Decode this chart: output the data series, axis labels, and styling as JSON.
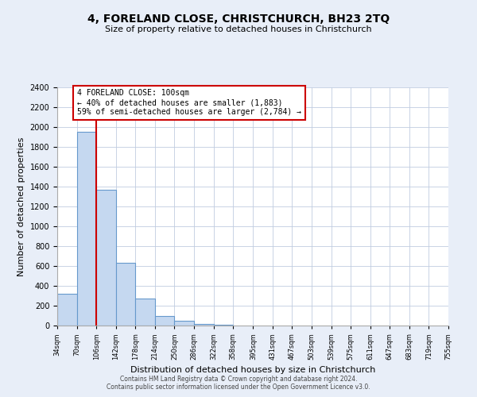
{
  "title": "4, FORELAND CLOSE, CHRISTCHURCH, BH23 2TQ",
  "subtitle": "Size of property relative to detached houses in Christchurch",
  "xlabel": "Distribution of detached houses by size in Christchurch",
  "ylabel": "Number of detached properties",
  "bar_values": [
    320,
    1950,
    1370,
    630,
    275,
    95,
    45,
    20,
    10
  ],
  "bin_edges": [
    34,
    70,
    106,
    142,
    178,
    214,
    250,
    286,
    322,
    358,
    395,
    431,
    467,
    503,
    539,
    575,
    611,
    647,
    683,
    719,
    755
  ],
  "tick_labels": [
    "34sqm",
    "70sqm",
    "106sqm",
    "142sqm",
    "178sqm",
    "214sqm",
    "250sqm",
    "286sqm",
    "322sqm",
    "358sqm",
    "395sqm",
    "431sqm",
    "467sqm",
    "503sqm",
    "539sqm",
    "575sqm",
    "611sqm",
    "647sqm",
    "683sqm",
    "719sqm",
    "755sqm"
  ],
  "bar_color": "#c5d8f0",
  "bar_edge_color": "#6699cc",
  "vline_x": 106,
  "vline_color": "#cc0000",
  "annotation_title": "4 FORELAND CLOSE: 100sqm",
  "annotation_line1": "← 40% of detached houses are smaller (1,883)",
  "annotation_line2": "59% of semi-detached houses are larger (2,784) →",
  "annotation_box_color": "#cc0000",
  "ylim": [
    0,
    2400
  ],
  "yticks": [
    0,
    200,
    400,
    600,
    800,
    1000,
    1200,
    1400,
    1600,
    1800,
    2000,
    2200,
    2400
  ],
  "footnote1": "Contains HM Land Registry data © Crown copyright and database right 2024.",
  "footnote2": "Contains public sector information licensed under the Open Government Licence v3.0.",
  "bg_color": "#e8eef8",
  "plot_bg_color": "#ffffff",
  "grid_color": "#c0cce0",
  "figsize": [
    6.0,
    5.0
  ],
  "dpi": 100
}
